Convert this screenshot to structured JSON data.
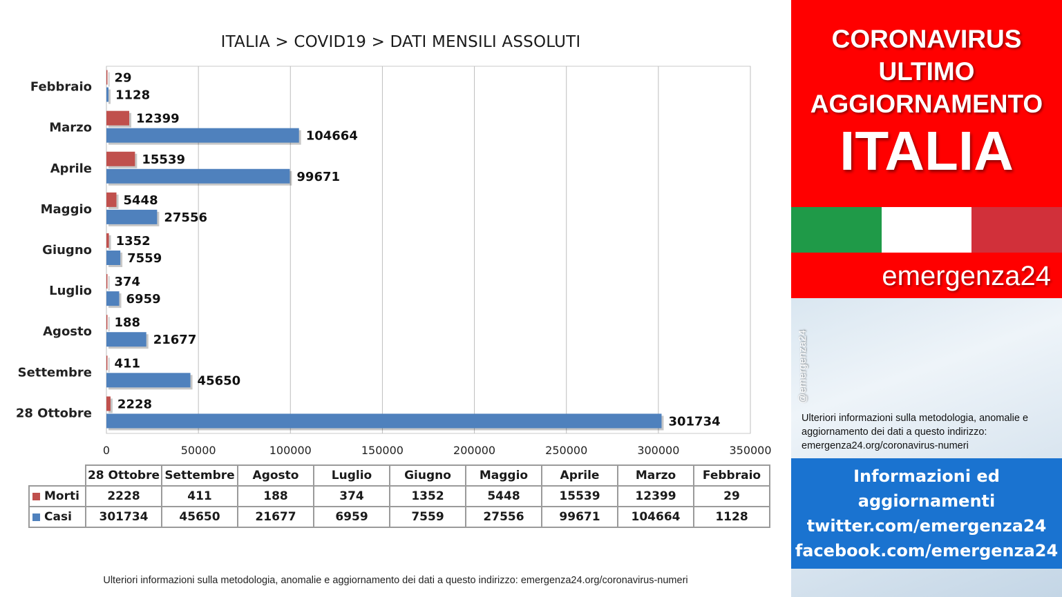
{
  "chart_data": {
    "type": "bar",
    "orientation": "horizontal",
    "title": "ITALIA >  COVID19 > DATI MENSILI  ASSOLUTI",
    "categories": [
      "Febbraio",
      "Marzo",
      "Aprile",
      "Maggio",
      "Giugno",
      "Luglio",
      "Agosto",
      "Settembre",
      "28 Ottobre"
    ],
    "series": [
      {
        "name": "Morti",
        "color": "#c0504d",
        "values": [
          29,
          12399,
          15539,
          5448,
          1352,
          374,
          188,
          411,
          2228
        ]
      },
      {
        "name": "Casi",
        "color": "#4f81bd",
        "values": [
          1128,
          104664,
          99671,
          27556,
          7559,
          6959,
          21677,
          45650,
          301734
        ]
      }
    ],
    "xlim": [
      0,
      350000
    ],
    "x_ticks": [
      0,
      50000,
      100000,
      150000,
      200000,
      250000,
      300000,
      350000
    ],
    "grid": true,
    "data_labels": true
  },
  "data_table": {
    "columns": [
      "28 Ottobre",
      "Settembre",
      "Agosto",
      "Luglio",
      "Giugno",
      "Maggio",
      "Aprile",
      "Marzo",
      "Febbraio"
    ],
    "rows": [
      {
        "label": "Morti",
        "color": "#c0504d",
        "values": [
          "2228",
          "411",
          "188",
          "374",
          "1352",
          "5448",
          "15539",
          "12399",
          "29"
        ]
      },
      {
        "label": "Casi",
        "color": "#4f81bd",
        "values": [
          "301734",
          "45650",
          "21677",
          "6959",
          "7559",
          "27556",
          "99671",
          "104664",
          "1128"
        ]
      }
    ]
  },
  "footnote": "Ulteriori informazioni sulla metodologia, anomalie e aggiornamento dei dati a questo indirizzo: emergenza24.org/coronavirus-numeri",
  "side": {
    "headline": [
      "CORONAVIRUS",
      "ULTIMO",
      "AGGIORNAMENTO"
    ],
    "country": "ITALIA",
    "flag_colors": [
      "#1f9a48",
      "#ffffff",
      "#d1303a"
    ],
    "brand": "emergenza24",
    "handle": "@emergenza24",
    "info_text": "Ulteriori informazioni sulla metodologia, anomalie e aggiornamento dei dati a questo indirizzo: emergenza24.org/coronavirus-numeri",
    "promo": [
      "Informazioni ed",
      "aggiornamenti",
      "twitter.com/emergenza24",
      "facebook.com/emergenza24"
    ]
  }
}
